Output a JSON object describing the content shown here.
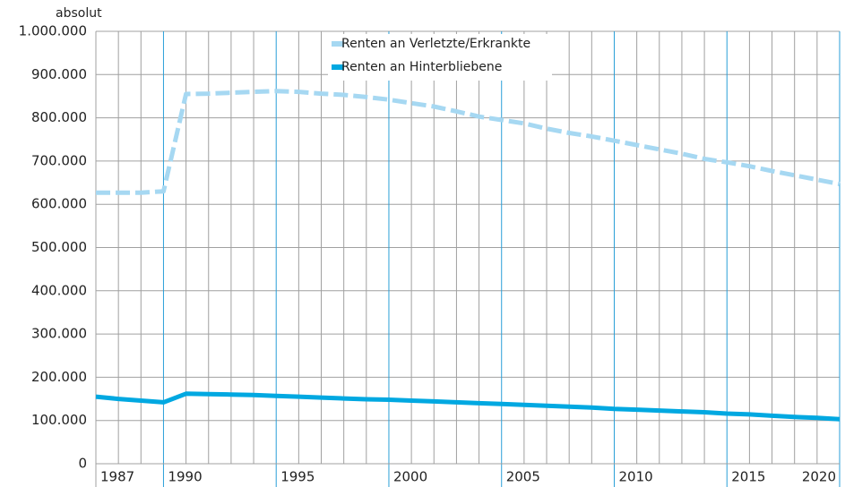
{
  "chart_data": {
    "type": "line",
    "y_axis_label": "absolut",
    "categories": [
      "1987",
      null,
      null,
      "1990",
      null,
      null,
      null,
      null,
      "1995",
      null,
      null,
      null,
      null,
      "2000",
      null,
      null,
      null,
      null,
      "2005",
      null,
      null,
      null,
      null,
      "2010",
      null,
      null,
      null,
      null,
      "2015",
      null,
      null,
      null,
      null,
      "2020"
    ],
    "series": [
      {
        "name": "Renten an Verletzte/Erkrankte",
        "color": "#a6d8f2",
        "dash": true,
        "values": [
          627000,
          627000,
          627000,
          630000,
          855000,
          856000,
          858000,
          860000,
          862000,
          860000,
          856000,
          853000,
          848000,
          842000,
          834000,
          826000,
          815000,
          803000,
          795000,
          787000,
          775000,
          765000,
          757000,
          747000,
          737000,
          727000,
          717000,
          705000,
          697000,
          688000,
          677000,
          667000,
          657000,
          647000
        ]
      },
      {
        "name": "Renten an Hinterbliebene",
        "color": "#00a8e1",
        "dash": false,
        "values": [
          155000,
          150000,
          146000,
          142000,
          162000,
          161000,
          160000,
          159000,
          157000,
          155000,
          153000,
          151000,
          149000,
          148000,
          146000,
          144000,
          142000,
          140000,
          138000,
          136000,
          134000,
          132000,
          130000,
          127000,
          125000,
          123000,
          121000,
          119000,
          116000,
          114000,
          111000,
          108000,
          106000,
          103000
        ]
      }
    ],
    "ylim": [
      0,
      1000000
    ],
    "yticks": [
      0,
      {
        "value": 100000,
        "label": "100.000"
      },
      {
        "value": 200000,
        "label": "200.000"
      },
      {
        "value": 300000,
        "label": "300.000"
      },
      {
        "value": 400000,
        "label": "400.000"
      },
      {
        "value": 500000,
        "label": "500.000"
      },
      {
        "value": 600000,
        "label": "600.000"
      },
      {
        "value": 700000,
        "label": "700.000"
      },
      {
        "value": 800000,
        "label": "800.000"
      },
      {
        "value": 900000,
        "label": "900.000"
      },
      {
        "value": 1000000,
        "label": "1.000.000"
      }
    ],
    "grid": true
  }
}
